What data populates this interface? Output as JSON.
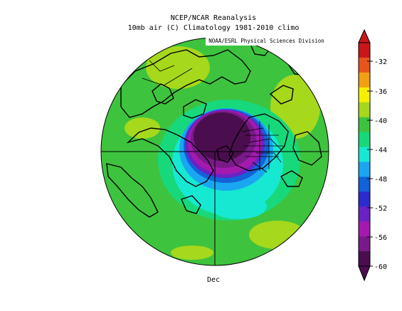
{
  "title_line1": "NCEP/NCAR Reanalysis",
  "title_line2": "10mb air (C) Climatology 1981-2010 climo",
  "credit": "NOAA/ESRL Physical Sciences Division",
  "month": "Dec",
  "colorbar": {
    "labels": [
      "-32",
      "-36",
      "-40",
      "-44",
      "-48",
      "-52",
      "-56",
      "-60"
    ],
    "colors": [
      "#c8161a",
      "#e8541c",
      "#f0a012",
      "#f5f000",
      "#a6d81c",
      "#3ec33e",
      "#18d87c",
      "#16e8d2",
      "#1aa6f0",
      "#1262d8",
      "#2b2bd0",
      "#6a22c4",
      "#a41aae",
      "#7a1a88",
      "#4a0e4e"
    ]
  },
  "map_colors": {
    "warm": "#a6d81c",
    "green": "#3ec33e",
    "mint": "#18d87c",
    "cyan": "#16e8d2",
    "lightblue": "#1aa6f0",
    "blue": "#1262d8",
    "purple": "#6a22c4",
    "magenta": "#a41aae",
    "deep": "#7a1a88",
    "core": "#4a0e4e"
  }
}
